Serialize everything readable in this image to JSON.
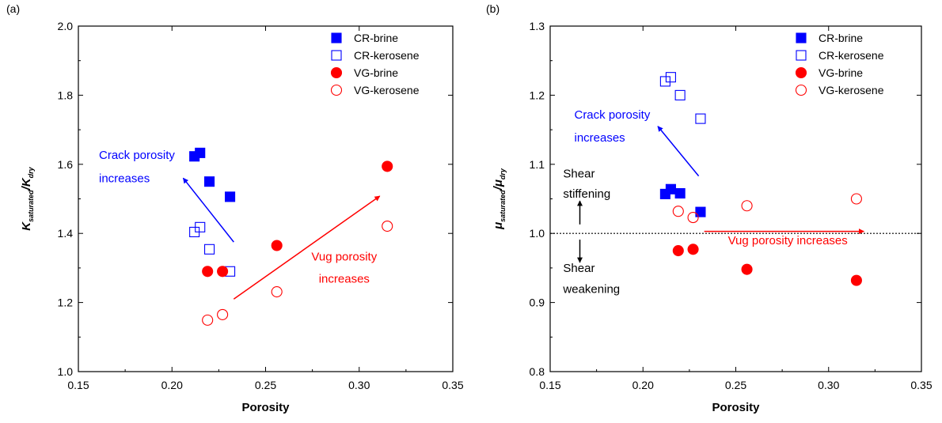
{
  "panels": [
    {
      "label": "(a)",
      "ylabel": {
        "main": "K",
        "sub1": "saturated",
        "mid": "/K",
        "sub2": "dry"
      },
      "chart_data": {
        "type": "scatter",
        "title": "",
        "xlabel": "Porosity",
        "ylabel": "K_saturated/K_dry",
        "xlim": [
          0.15,
          0.35
        ],
        "ylim": [
          1.0,
          2.0
        ],
        "x_ticks": [
          "0.15",
          "0.20",
          "0.25",
          "0.30",
          "0.35"
        ],
        "y_ticks": [
          "1.0",
          "1.2",
          "1.4",
          "1.6",
          "1.8",
          "2.0"
        ],
        "x_tick_values": [
          0.15,
          0.2,
          0.25,
          0.3,
          0.35
        ],
        "y_tick_values": [
          1.0,
          1.2,
          1.4,
          1.6,
          1.8,
          2.0
        ],
        "legend_position": "top-right",
        "series": [
          {
            "name": "CR-brine",
            "marker": "square",
            "filled": true,
            "color": "#0000ff",
            "points": [
              [
                0.212,
                1.623
              ],
              [
                0.215,
                1.633
              ],
              [
                0.22,
                1.55
              ],
              [
                0.231,
                1.506
              ]
            ]
          },
          {
            "name": "CR-kerosene",
            "marker": "square",
            "filled": false,
            "color": "#0000ff",
            "points": [
              [
                0.212,
                1.404
              ],
              [
                0.215,
                1.418
              ],
              [
                0.22,
                1.354
              ],
              [
                0.231,
                1.29
              ]
            ]
          },
          {
            "name": "VG-brine",
            "marker": "circle",
            "filled": true,
            "color": "#ff0000",
            "points": [
              [
                0.219,
                1.29
              ],
              [
                0.227,
                1.29
              ],
              [
                0.256,
                1.365
              ],
              [
                0.315,
                1.594
              ]
            ]
          },
          {
            "name": "VG-kerosene",
            "marker": "circle",
            "filled": false,
            "color": "#ff0000",
            "points": [
              [
                0.219,
                1.149
              ],
              [
                0.227,
                1.165
              ],
              [
                0.256,
                1.231
              ],
              [
                0.315,
                1.421
              ]
            ]
          }
        ],
        "annotations": [
          {
            "lines": [
              "Crack porosity",
              "increases"
            ],
            "color": "#0000ff",
            "italic": false,
            "x": 0.161,
            "y": [
              1.615,
              1.548
            ],
            "anchor": "start"
          },
          {
            "lines": [
              "Vug porosity",
              "increases"
            ],
            "color": "#ff0000",
            "italic": false,
            "x": 0.292,
            "y": [
              1.322,
              1.257
            ],
            "anchor": "middle"
          }
        ],
        "arrows": [
          {
            "from": [
              0.233,
              1.375
            ],
            "to": [
              0.206,
              1.56
            ],
            "color": "#0000ff"
          },
          {
            "from": [
              0.233,
              1.21
            ],
            "to": [
              0.311,
              1.508
            ],
            "color": "#ff0000"
          }
        ],
        "hlines": []
      }
    },
    {
      "label": "(b)",
      "ylabel": {
        "main": "μ",
        "sub1": "saturated",
        "mid": "/μ",
        "sub2": "dry"
      },
      "chart_data": {
        "type": "scatter",
        "title": "",
        "xlabel": "Porosity",
        "ylabel": "μ_saturated/μ_dry",
        "xlim": [
          0.15,
          0.35
        ],
        "ylim": [
          0.8,
          1.3
        ],
        "x_ticks": [
          "0.15",
          "0.20",
          "0.25",
          "0.30",
          "0.35"
        ],
        "y_ticks": [
          "0.8",
          "0.9",
          "1.0",
          "1.1",
          "1.2",
          "1.3"
        ],
        "x_tick_values": [
          0.15,
          0.2,
          0.25,
          0.3,
          0.35
        ],
        "y_tick_values": [
          0.8,
          0.9,
          1.0,
          1.1,
          1.2,
          1.3
        ],
        "legend_position": "top-right",
        "series": [
          {
            "name": "CR-brine",
            "marker": "square",
            "filled": true,
            "color": "#0000ff",
            "points": [
              [
                0.212,
                1.057
              ],
              [
                0.215,
                1.064
              ],
              [
                0.22,
                1.058
              ],
              [
                0.231,
                1.031
              ]
            ]
          },
          {
            "name": "CR-kerosene",
            "marker": "square",
            "filled": false,
            "color": "#0000ff",
            "points": [
              [
                0.212,
                1.22
              ],
              [
                0.215,
                1.226
              ],
              [
                0.22,
                1.2
              ],
              [
                0.231,
                1.166
              ]
            ]
          },
          {
            "name": "VG-brine",
            "marker": "circle",
            "filled": true,
            "color": "#ff0000",
            "points": [
              [
                0.219,
                0.975
              ],
              [
                0.227,
                0.977
              ],
              [
                0.256,
                0.948
              ],
              [
                0.315,
                0.932
              ]
            ]
          },
          {
            "name": "VG-kerosene",
            "marker": "circle",
            "filled": false,
            "color": "#ff0000",
            "points": [
              [
                0.219,
                1.032
              ],
              [
                0.227,
                1.023
              ],
              [
                0.256,
                1.04
              ],
              [
                0.315,
                1.05
              ]
            ]
          }
        ],
        "annotations": [
          {
            "lines": [
              "Crack porosity",
              "increases"
            ],
            "color": "#0000ff",
            "italic": false,
            "x": 0.163,
            "y": [
              1.166,
              1.133
            ],
            "anchor": "start"
          },
          {
            "lines": [
              "Shear",
              "stiffening"
            ],
            "color": "#000000",
            "italic": false,
            "x": 0.157,
            "y": [
              1.081,
              1.052
            ],
            "anchor": "start"
          },
          {
            "lines": [
              "Shear",
              "weakening"
            ],
            "color": "#000000",
            "italic": false,
            "x": 0.157,
            "y": [
              0.944,
              0.914
            ],
            "anchor": "start"
          },
          {
            "lines": [
              "Vug porosity increases"
            ],
            "color": "#ff0000",
            "italic": false,
            "x": 0.278,
            "y": [
              0.984
            ],
            "anchor": "middle"
          }
        ],
        "arrows": [
          {
            "from": [
              0.23,
              1.083
            ],
            "to": [
              0.208,
              1.155
            ],
            "color": "#0000ff"
          },
          {
            "from": [
              0.233,
              1.003
            ],
            "to": [
              0.319,
              1.003
            ],
            "color": "#ff0000"
          },
          {
            "from": [
              0.166,
              1.013
            ],
            "to": [
              0.166,
              1.047
            ],
            "color": "#000000"
          },
          {
            "from": [
              0.166,
              0.991
            ],
            "to": [
              0.166,
              0.958
            ],
            "color": "#000000"
          }
        ],
        "hlines": [
          {
            "y": 1.0,
            "style": "dotted",
            "color": "#000000"
          }
        ]
      }
    }
  ]
}
